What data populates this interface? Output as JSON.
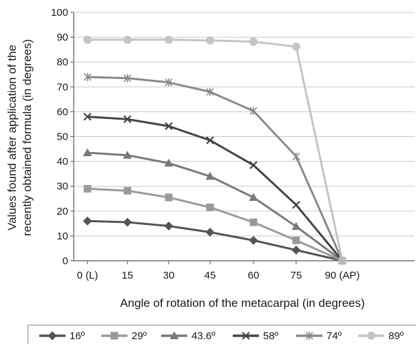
{
  "chart_data": {
    "type": "line",
    "title": "",
    "xlabel": "Angle of rotation of the metacarpal (in degrees)",
    "ylabel_lines": [
      "Values found after application of the",
      "recently obtained formula (in degrees)"
    ],
    "categories": [
      "0 (L)",
      "15",
      "30",
      "45",
      "60",
      "75",
      "90 (AP)"
    ],
    "ylim": [
      0,
      100
    ],
    "yticks": [
      0,
      10,
      20,
      30,
      40,
      50,
      60,
      70,
      80,
      90,
      100
    ],
    "grid": "vertical",
    "legend_position": "bottom",
    "series": [
      {
        "name": "16º",
        "marker": "diamond",
        "color": "#555555",
        "values": [
          16,
          15.5,
          14,
          11.5,
          8.2,
          4.3,
          0
        ]
      },
      {
        "name": "29º",
        "marker": "square",
        "color": "#9a9a9a",
        "values": [
          29,
          28.2,
          25.5,
          21.5,
          15.5,
          8.2,
          0
        ]
      },
      {
        "name": "43.6º",
        "marker": "triangle",
        "color": "#7a7a7a",
        "values": [
          43.5,
          42.5,
          39.3,
          34,
          25.5,
          13.8,
          0
        ]
      },
      {
        "name": "58º",
        "marker": "x",
        "color": "#454545",
        "values": [
          58,
          57,
          54.2,
          48.5,
          38.5,
          22.5,
          0
        ]
      },
      {
        "name": "74º",
        "marker": "star",
        "color": "#8a8a8a",
        "values": [
          74,
          73.5,
          71.8,
          68,
          60.3,
          42,
          0
        ]
      },
      {
        "name": "89º",
        "marker": "circle",
        "color": "#c4c4c4",
        "values": [
          89,
          89,
          89,
          88.7,
          88.2,
          86.2,
          0
        ]
      }
    ]
  }
}
